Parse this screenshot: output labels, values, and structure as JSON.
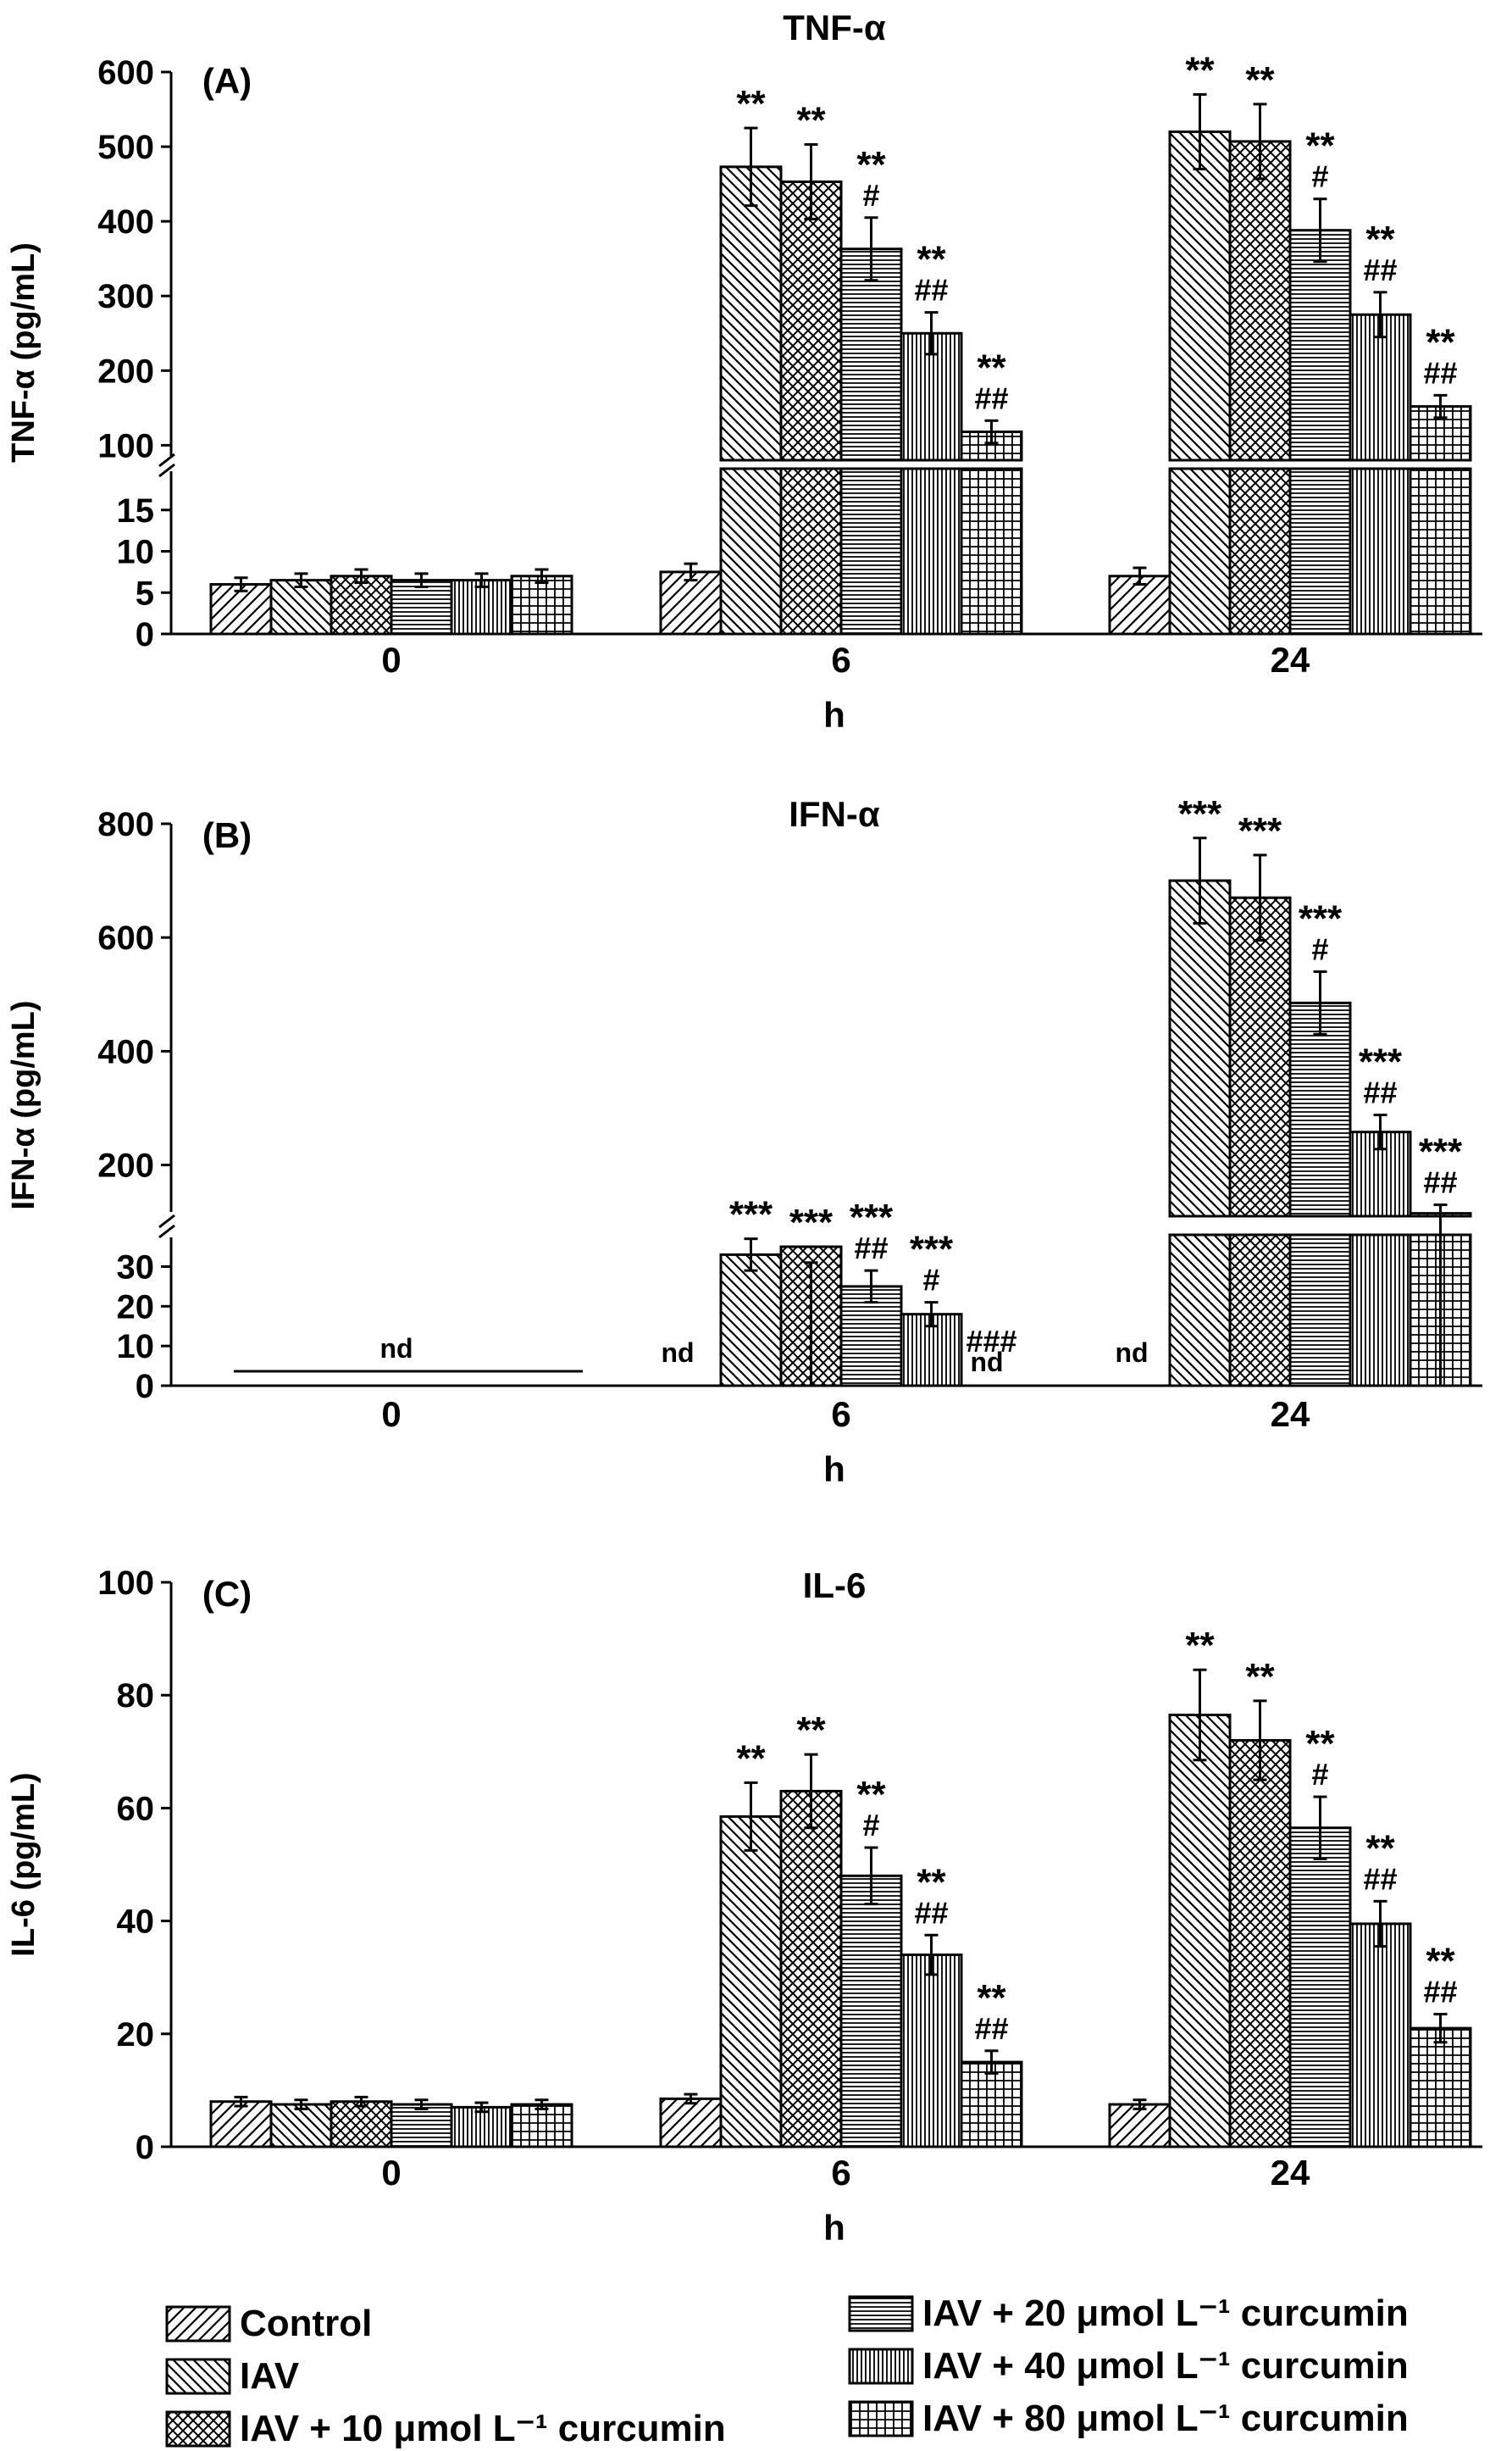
{
  "figure": {
    "legend": [
      {
        "label": "Control",
        "pattern": "diag"
      },
      {
        "label": "IAV",
        "pattern": "antidiag"
      },
      {
        "label": "IAV + 10 μmol L⁻¹ curcumin",
        "pattern": "cross"
      },
      {
        "label": "IAV + 20 μmol L⁻¹ curcumin",
        "pattern": "horiz"
      },
      {
        "label": "IAV + 40 μmol L⁻¹ curcumin",
        "pattern": "vert"
      },
      {
        "label": "IAV + 80 μmol L⁻¹ curcumin",
        "pattern": "grid"
      }
    ],
    "colors": {
      "ink": "#000000",
      "fill": "#ffffff"
    }
  },
  "chart_data": [
    {
      "panel": "(A)",
      "title": "TNF-α",
      "type": "bar",
      "ylabel": "TNF-α (pg/mL)",
      "xlabel": "h",
      "categories": [
        "0",
        "6",
        "24"
      ],
      "y_axis_break": {
        "lower_range": [
          0,
          20
        ],
        "upper_range": [
          80,
          600
        ]
      },
      "lower_ticks": [
        0,
        5,
        10,
        15
      ],
      "upper_ticks": [
        100,
        200,
        300,
        400,
        500,
        600
      ],
      "series": [
        {
          "name": "Control",
          "values": [
            6,
            7.5,
            7
          ],
          "errors": [
            0.8,
            1,
            1
          ]
        },
        {
          "name": "IAV",
          "values": [
            6.5,
            473,
            520
          ],
          "errors": [
            0.8,
            52,
            50
          ]
        },
        {
          "name": "IAV + 10 μmol L⁻¹ curcumin",
          "values": [
            7,
            453,
            507
          ],
          "errors": [
            0.8,
            50,
            50
          ]
        },
        {
          "name": "IAV + 20 μmol L⁻¹ curcumin",
          "values": [
            6.5,
            363,
            388
          ],
          "errors": [
            0.8,
            42,
            42
          ]
        },
        {
          "name": "IAV + 40 μmol L⁻¹ curcumin",
          "values": [
            6.5,
            250,
            275
          ],
          "errors": [
            0.8,
            28,
            30
          ]
        },
        {
          "name": "IAV + 80 μmol L⁻¹ curcumin",
          "values": [
            7,
            118,
            152
          ],
          "errors": [
            0.8,
            15,
            15
          ]
        }
      ],
      "annotations": [
        [
          "",
          "",
          ""
        ],
        [
          "",
          "**",
          "**"
        ],
        [
          "",
          "**",
          "**"
        ],
        [
          "",
          "**\n#",
          "**\n#"
        ],
        [
          "",
          "**\n##",
          "**\n##"
        ],
        [
          "",
          "**\n##",
          "**\n##"
        ]
      ]
    },
    {
      "panel": "(B)",
      "title": "IFN-α",
      "type": "bar",
      "ylabel": "IFN-α (pg/mL)",
      "xlabel": "h",
      "categories": [
        "0",
        "6",
        "24"
      ],
      "y_axis_break": {
        "lower_range": [
          0,
          38
        ],
        "upper_range": [
          110,
          800
        ]
      },
      "lower_ticks": [
        0,
        10,
        20,
        30
      ],
      "upper_ticks": [
        200,
        400,
        600,
        800
      ],
      "series": [
        {
          "name": "Control",
          "values": [
            null,
            null,
            null
          ],
          "errors": [
            0,
            0,
            0
          ]
        },
        {
          "name": "IAV",
          "values": [
            null,
            33,
            700
          ],
          "errors": [
            0,
            4,
            75
          ]
        },
        {
          "name": "IAV + 10 μmol L⁻¹ curcumin",
          "values": [
            null,
            35,
            670
          ],
          "errors": [
            0,
            4,
            75
          ]
        },
        {
          "name": "IAV + 20 μmol L⁻¹ curcumin",
          "values": [
            null,
            25,
            485
          ],
          "errors": [
            0,
            4,
            55
          ]
        },
        {
          "name": "IAV + 40 μmol L⁻¹ curcumin",
          "values": [
            null,
            18,
            258
          ],
          "errors": [
            0,
            3,
            30
          ]
        },
        {
          "name": "IAV + 80 μmol L⁻¹ curcumin",
          "values": [
            null,
            null,
            115
          ],
          "errors": [
            0,
            0,
            15
          ]
        }
      ],
      "annotations": [
        [
          "",
          "",
          ""
        ],
        [
          "",
          "***",
          "***"
        ],
        [
          "",
          "***",
          "***"
        ],
        [
          "",
          "***\n##",
          "***\n#"
        ],
        [
          "",
          "***\n#",
          "***\n##"
        ],
        [
          "",
          "###",
          "***\n##"
        ]
      ],
      "nd_label": "nd"
    },
    {
      "panel": "(C)",
      "title": "IL-6",
      "type": "bar",
      "ylabel": "IL-6 (pg/mL)",
      "xlabel": "h",
      "categories": [
        "0",
        "6",
        "24"
      ],
      "ylim": [
        0,
        100
      ],
      "ticks": [
        0,
        20,
        40,
        60,
        80,
        100
      ],
      "series": [
        {
          "name": "Control",
          "values": [
            8,
            8.5,
            7.5
          ],
          "errors": [
            0.8,
            0.8,
            0.8
          ]
        },
        {
          "name": "IAV",
          "values": [
            7.5,
            58.5,
            76.5
          ],
          "errors": [
            0.8,
            6,
            8
          ]
        },
        {
          "name": "IAV + 10 μmol L⁻¹ curcumin",
          "values": [
            8,
            63,
            72
          ],
          "errors": [
            0.8,
            6.5,
            7
          ]
        },
        {
          "name": "IAV + 20 μmol L⁻¹ curcumin",
          "values": [
            7.5,
            48,
            56.5
          ],
          "errors": [
            0.8,
            5,
            5.5
          ]
        },
        {
          "name": "IAV + 40 μmol L⁻¹ curcumin",
          "values": [
            7,
            34,
            39.5
          ],
          "errors": [
            0.8,
            3.5,
            4
          ]
        },
        {
          "name": "IAV + 80 μmol L⁻¹ curcumin",
          "values": [
            7.5,
            15,
            21
          ],
          "errors": [
            0.8,
            2,
            2.5
          ]
        }
      ],
      "annotations": [
        [
          "",
          "",
          ""
        ],
        [
          "",
          "**",
          "**"
        ],
        [
          "",
          "**",
          "**"
        ],
        [
          "",
          "**\n#",
          "**\n#"
        ],
        [
          "",
          "**\n##",
          "**\n##"
        ],
        [
          "",
          "**\n##",
          "**\n##"
        ]
      ]
    }
  ]
}
